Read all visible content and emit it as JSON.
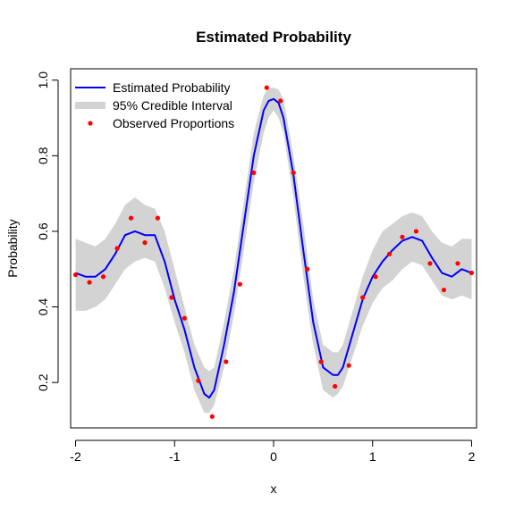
{
  "chart_data": {
    "type": "line",
    "title": "Estimated Probability",
    "xlabel": "x",
    "ylabel": "Probability",
    "xlim": [
      -2.05,
      2.05
    ],
    "ylim": [
      0.08,
      1.03
    ],
    "x_ticks": [
      -2,
      -1,
      0,
      1,
      2
    ],
    "x_tick_labels": [
      "-2",
      "-1",
      "0",
      "1",
      "2"
    ],
    "y_ticks": [
      0.2,
      0.4,
      0.6,
      0.8,
      1.0
    ],
    "y_tick_labels": [
      "0.2",
      "0.4",
      "0.6",
      "0.8",
      "1.0"
    ],
    "grid": false,
    "legend_position": "top-left",
    "colors": {
      "line": "#0000ff",
      "band": "#d3d3d3",
      "points": "#ff0000",
      "axis": "#000000"
    },
    "series": [
      {
        "name": "Estimated Probability",
        "kind": "line",
        "x": [
          -2.0,
          -1.9,
          -1.8,
          -1.7,
          -1.6,
          -1.5,
          -1.4,
          -1.3,
          -1.2,
          -1.1,
          -1.0,
          -0.9,
          -0.8,
          -0.7,
          -0.65,
          -0.6,
          -0.5,
          -0.4,
          -0.3,
          -0.2,
          -0.1,
          -0.05,
          0.0,
          0.05,
          0.1,
          0.2,
          0.3,
          0.4,
          0.5,
          0.6,
          0.65,
          0.7,
          0.8,
          0.9,
          1.0,
          1.1,
          1.2,
          1.3,
          1.4,
          1.5,
          1.6,
          1.7,
          1.8,
          1.9,
          2.0
        ],
        "y": [
          0.49,
          0.48,
          0.48,
          0.5,
          0.54,
          0.59,
          0.6,
          0.59,
          0.59,
          0.52,
          0.42,
          0.34,
          0.24,
          0.17,
          0.16,
          0.18,
          0.3,
          0.44,
          0.62,
          0.8,
          0.92,
          0.945,
          0.95,
          0.94,
          0.9,
          0.75,
          0.55,
          0.36,
          0.24,
          0.22,
          0.22,
          0.24,
          0.33,
          0.42,
          0.48,
          0.52,
          0.55,
          0.575,
          0.585,
          0.575,
          0.53,
          0.49,
          0.48,
          0.5,
          0.49
        ]
      },
      {
        "name": "95% Credible Interval",
        "kind": "band",
        "x": [
          -2.0,
          -1.9,
          -1.8,
          -1.7,
          -1.6,
          -1.5,
          -1.4,
          -1.3,
          -1.2,
          -1.1,
          -1.0,
          -0.9,
          -0.8,
          -0.7,
          -0.65,
          -0.6,
          -0.5,
          -0.4,
          -0.3,
          -0.2,
          -0.1,
          -0.05,
          0.0,
          0.05,
          0.1,
          0.2,
          0.3,
          0.4,
          0.5,
          0.6,
          0.65,
          0.7,
          0.8,
          0.9,
          1.0,
          1.1,
          1.2,
          1.3,
          1.4,
          1.5,
          1.6,
          1.7,
          1.8,
          1.9,
          2.0
        ],
        "lower": [
          0.39,
          0.39,
          0.4,
          0.42,
          0.46,
          0.5,
          0.52,
          0.53,
          0.52,
          0.45,
          0.36,
          0.28,
          0.18,
          0.12,
          0.12,
          0.14,
          0.24,
          0.38,
          0.55,
          0.73,
          0.86,
          0.9,
          0.92,
          0.9,
          0.86,
          0.69,
          0.48,
          0.3,
          0.18,
          0.16,
          0.17,
          0.19,
          0.27,
          0.35,
          0.41,
          0.45,
          0.47,
          0.5,
          0.52,
          0.51,
          0.47,
          0.43,
          0.42,
          0.43,
          0.42
        ],
        "upper": [
          0.58,
          0.57,
          0.56,
          0.58,
          0.62,
          0.67,
          0.69,
          0.67,
          0.66,
          0.6,
          0.5,
          0.4,
          0.3,
          0.24,
          0.23,
          0.24,
          0.36,
          0.5,
          0.68,
          0.86,
          0.96,
          0.98,
          0.98,
          0.975,
          0.95,
          0.8,
          0.62,
          0.42,
          0.3,
          0.28,
          0.28,
          0.3,
          0.39,
          0.48,
          0.55,
          0.6,
          0.62,
          0.64,
          0.65,
          0.64,
          0.6,
          0.57,
          0.56,
          0.58,
          0.58
        ]
      },
      {
        "name": "Observed Proportions",
        "kind": "points",
        "x": [
          -2.0,
          -1.86,
          -1.72,
          -1.58,
          -1.44,
          -1.3,
          -1.17,
          -1.03,
          -0.9,
          -0.76,
          -0.62,
          -0.48,
          -0.34,
          -0.2,
          -0.07,
          0.07,
          0.2,
          0.34,
          0.48,
          0.62,
          0.76,
          0.9,
          1.03,
          1.17,
          1.3,
          1.44,
          1.58,
          1.72,
          1.86,
          2.0
        ],
        "y": [
          0.485,
          0.465,
          0.48,
          0.555,
          0.635,
          0.57,
          0.635,
          0.425,
          0.37,
          0.205,
          0.11,
          0.255,
          0.46,
          0.755,
          0.98,
          0.945,
          0.755,
          0.5,
          0.255,
          0.19,
          0.245,
          0.425,
          0.48,
          0.54,
          0.585,
          0.6,
          0.515,
          0.445,
          0.515,
          0.49
        ]
      }
    ]
  }
}
